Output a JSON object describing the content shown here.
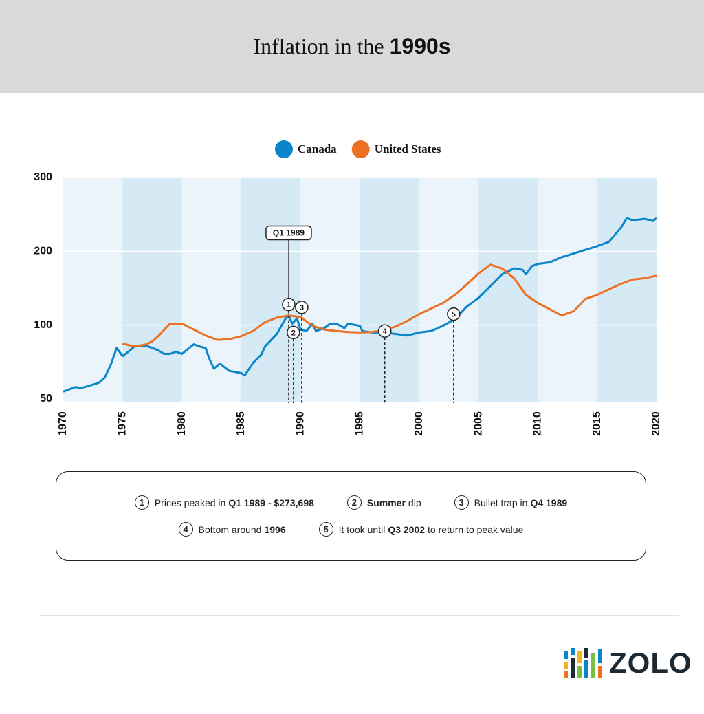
{
  "chart_data": {
    "type": "line",
    "title": {
      "text": "Inflation in the",
      "emphasis": "1990s"
    },
    "xlim": [
      1970,
      2020
    ],
    "xticks": [
      1970,
      1975,
      1980,
      1985,
      1990,
      1995,
      2000,
      2005,
      2010,
      2015,
      2020
    ],
    "ylim": [
      50,
      300
    ],
    "yticks": [
      50,
      100,
      200,
      300
    ],
    "series": [
      {
        "name": "Canada",
        "color": "#0a85c9",
        "x": [
          1970,
          1971,
          1971.5,
          1972,
          1973,
          1973.5,
          1974,
          1974.5,
          1975,
          1975.5,
          1976,
          1977,
          1978,
          1978.5,
          1979,
          1979.5,
          1980,
          1981,
          1981.5,
          1982,
          1982.3,
          1982.7,
          1983.2,
          1984,
          1985,
          1985.3,
          1986,
          1986.7,
          1987,
          1988,
          1988.7,
          1989,
          1989.3,
          1989.7,
          1990,
          1990.5,
          1991,
          1991.3,
          1992,
          1992.5,
          1993,
          1993.7,
          1994,
          1995,
          1995.2,
          1996,
          1997,
          1998,
          1999,
          2000,
          2001,
          2002,
          2003,
          2004,
          2005,
          2006,
          2007,
          2008,
          2008.7,
          2009,
          2009.5,
          2010,
          2011,
          2012,
          2013,
          2014,
          2015,
          2016,
          2017,
          2017.5,
          2018,
          2019,
          2019.7,
          2020
        ],
        "values": [
          55,
          58,
          57.5,
          58.5,
          61,
          64.5,
          73,
          84.5,
          79,
          82,
          85.5,
          86,
          83,
          80.5,
          80.5,
          82,
          80.5,
          87,
          85.5,
          84.5,
          77.5,
          70.5,
          74,
          69,
          67.5,
          66,
          74.5,
          80,
          85.5,
          94,
          108,
          113,
          102,
          109,
          97,
          96,
          102,
          96,
          98,
          102,
          102,
          98,
          102,
          99.5,
          96,
          95,
          95,
          94,
          93,
          95,
          96,
          99.5,
          108,
          125,
          137,
          153,
          169,
          177,
          175,
          169,
          180,
          183,
          185,
          192,
          197,
          202,
          207,
          213,
          232,
          245,
          242,
          244,
          241,
          245
        ]
      },
      {
        "name": "United States",
        "color": "#ec7125",
        "x": [
          1975,
          1976,
          1977,
          1977.5,
          1978,
          1978.7,
          1979,
          1980,
          1981,
          1982,
          1983,
          1984,
          1985,
          1986,
          1987,
          1988,
          1989,
          1990,
          1991,
          1992,
          1993,
          1994,
          1995,
          1996,
          1997,
          1998,
          1999,
          2000,
          2001,
          2002,
          2003,
          2004,
          2005,
          2006,
          2007,
          2008,
          2009,
          2010,
          2011,
          2012,
          2013,
          2014,
          2015,
          2016,
          2017,
          2018,
          2019,
          2020
        ],
        "values": [
          87.5,
          85.5,
          87,
          89,
          92.5,
          98.5,
          102,
          102,
          97,
          93,
          90,
          90.5,
          92.5,
          96,
          104,
          110,
          113,
          111,
          99.5,
          97,
          96,
          95.3,
          95,
          95.3,
          96.7,
          99,
          105.6,
          115,
          122.4,
          130,
          141,
          155,
          170,
          182,
          176.6,
          163.5,
          141,
          130,
          121.5,
          113,
          118.7,
          135.5,
          141,
          148.6,
          156,
          161.7,
          163.5,
          167
        ]
      }
    ],
    "callout": {
      "text": "Q1 1989",
      "x": 1989,
      "y": 225
    },
    "markers": [
      {
        "label": "1",
        "x": 1989,
        "y": 128
      },
      {
        "label": "2",
        "x": 1989.4,
        "y": 95
      },
      {
        "label": "3",
        "x": 1990.1,
        "y": 124
      },
      {
        "label": "4",
        "x": 1997.1,
        "y": 96
      },
      {
        "label": "5",
        "x": 2002.9,
        "y": 115
      }
    ]
  },
  "notes": [
    [
      {
        "number": "1",
        "parts": [
          {
            "text": "Prices peaked in"
          },
          {
            "text": "Q1 1989 - $273,698",
            "bold": true
          }
        ]
      },
      {
        "number": "2",
        "parts": [
          {
            "text": "Summer",
            "bold": true
          },
          {
            "text": "dip"
          }
        ]
      },
      {
        "number": "3",
        "parts": [
          {
            "text": "Bullet trap in"
          },
          {
            "text": "Q4 1989",
            "bold": true
          }
        ]
      }
    ],
    [
      {
        "number": "4",
        "parts": [
          {
            "text": "Bottom around"
          },
          {
            "text": "1996",
            "bold": true
          }
        ]
      },
      {
        "number": "5",
        "parts": [
          {
            "text": "It took until"
          },
          {
            "text": "Q3 2002",
            "bold": true
          },
          {
            "text": "to return to peak value"
          }
        ]
      }
    ]
  ],
  "brand": "ZOLO"
}
